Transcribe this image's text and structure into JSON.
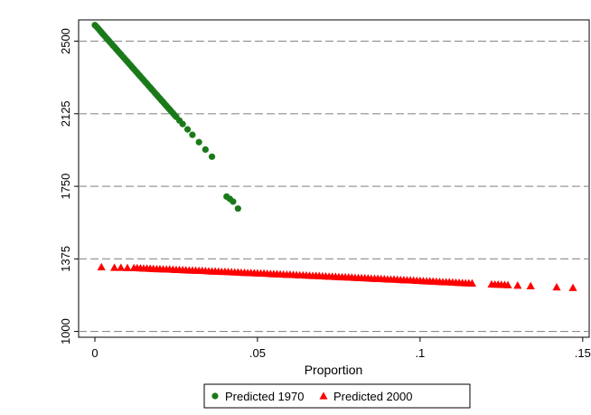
{
  "chart_data": {
    "type": "scatter",
    "title": "",
    "xlabel": "Proportion",
    "ylabel": "",
    "xlim": [
      -0.005,
      0.152
    ],
    "ylim": [
      970,
      2610
    ],
    "x_ticks": [
      {
        "value": 0,
        "label": "0"
      },
      {
        "value": 0.05,
        "label": ".05"
      },
      {
        "value": 0.1,
        "label": ".1"
      },
      {
        "value": 0.15,
        "label": ".15"
      }
    ],
    "y_ticks": [
      {
        "value": 1000,
        "label": "1000"
      },
      {
        "value": 1375,
        "label": "1375"
      },
      {
        "value": 1750,
        "label": "1750"
      },
      {
        "value": 2125,
        "label": "2125"
      },
      {
        "value": 2500,
        "label": "2500"
      }
    ],
    "grid": "horizontal dashed",
    "legend_position": "bottom",
    "series": [
      {
        "name": "Predicted 1970",
        "marker": "circle",
        "color": "#1a7a1a",
        "points": [
          [
            0.0,
            2583
          ],
          [
            0.0005,
            2575
          ],
          [
            0.001,
            2566
          ],
          [
            0.0015,
            2556
          ],
          [
            0.002,
            2546
          ],
          [
            0.0025,
            2536
          ],
          [
            0.003,
            2527
          ],
          [
            0.0035,
            2517
          ],
          [
            0.004,
            2508
          ],
          [
            0.0045,
            2498
          ],
          [
            0.005,
            2489
          ],
          [
            0.0055,
            2479
          ],
          [
            0.006,
            2470
          ],
          [
            0.0065,
            2460
          ],
          [
            0.007,
            2451
          ],
          [
            0.0075,
            2441
          ],
          [
            0.008,
            2432
          ],
          [
            0.0085,
            2422
          ],
          [
            0.009,
            2413
          ],
          [
            0.0095,
            2403
          ],
          [
            0.01,
            2394
          ],
          [
            0.0105,
            2384
          ],
          [
            0.011,
            2375
          ],
          [
            0.0115,
            2365
          ],
          [
            0.012,
            2356
          ],
          [
            0.0125,
            2346
          ],
          [
            0.013,
            2337
          ],
          [
            0.0135,
            2327
          ],
          [
            0.014,
            2318
          ],
          [
            0.0145,
            2308
          ],
          [
            0.015,
            2299
          ],
          [
            0.0155,
            2289
          ],
          [
            0.016,
            2280
          ],
          [
            0.0165,
            2270
          ],
          [
            0.017,
            2261
          ],
          [
            0.0175,
            2251
          ],
          [
            0.018,
            2242
          ],
          [
            0.0185,
            2232
          ],
          [
            0.019,
            2223
          ],
          [
            0.0195,
            2213
          ],
          [
            0.02,
            2204
          ],
          [
            0.0205,
            2194
          ],
          [
            0.021,
            2185
          ],
          [
            0.0215,
            2175
          ],
          [
            0.022,
            2166
          ],
          [
            0.0225,
            2156
          ],
          [
            0.023,
            2147
          ],
          [
            0.0235,
            2137
          ],
          [
            0.024,
            2128
          ],
          [
            0.0245,
            2118
          ],
          [
            0.025,
            2109
          ],
          [
            0.026,
            2090
          ],
          [
            0.027,
            2072
          ],
          [
            0.0285,
            2044
          ],
          [
            0.03,
            2016
          ],
          [
            0.032,
            1978
          ],
          [
            0.034,
            1940
          ],
          [
            0.036,
            1903
          ],
          [
            0.0405,
            1697
          ],
          [
            0.0415,
            1685
          ],
          [
            0.0425,
            1671
          ],
          [
            0.044,
            1635
          ]
        ]
      },
      {
        "name": "Predicted 2000",
        "marker": "triangle",
        "color": "#ff0000",
        "points": [
          [
            0.002,
            1333
          ],
          [
            0.006,
            1330
          ],
          [
            0.008,
            1330
          ],
          [
            0.01,
            1329
          ],
          [
            0.012,
            1328
          ],
          [
            0.013,
            1328
          ],
          [
            0.014,
            1327
          ],
          [
            0.015,
            1326
          ],
          [
            0.016,
            1326
          ],
          [
            0.017,
            1325
          ],
          [
            0.018,
            1324
          ],
          [
            0.019,
            1323
          ],
          [
            0.02,
            1323
          ],
          [
            0.021,
            1322
          ],
          [
            0.022,
            1321
          ],
          [
            0.023,
            1321
          ],
          [
            0.024,
            1320
          ],
          [
            0.025,
            1319
          ],
          [
            0.026,
            1319
          ],
          [
            0.027,
            1318
          ],
          [
            0.028,
            1317
          ],
          [
            0.029,
            1316
          ],
          [
            0.03,
            1316
          ],
          [
            0.031,
            1315
          ],
          [
            0.032,
            1314
          ],
          [
            0.033,
            1314
          ],
          [
            0.034,
            1313
          ],
          [
            0.035,
            1312
          ],
          [
            0.036,
            1311
          ],
          [
            0.037,
            1311
          ],
          [
            0.038,
            1310
          ],
          [
            0.039,
            1309
          ],
          [
            0.04,
            1309
          ],
          [
            0.041,
            1308
          ],
          [
            0.042,
            1307
          ],
          [
            0.043,
            1306
          ],
          [
            0.044,
            1306
          ],
          [
            0.045,
            1305
          ],
          [
            0.046,
            1304
          ],
          [
            0.047,
            1303
          ],
          [
            0.048,
            1303
          ],
          [
            0.049,
            1302
          ],
          [
            0.05,
            1301
          ],
          [
            0.051,
            1300
          ],
          [
            0.052,
            1300
          ],
          [
            0.053,
            1299
          ],
          [
            0.054,
            1298
          ],
          [
            0.055,
            1297
          ],
          [
            0.056,
            1297
          ],
          [
            0.057,
            1296
          ],
          [
            0.058,
            1295
          ],
          [
            0.059,
            1294
          ],
          [
            0.06,
            1294
          ],
          [
            0.061,
            1293
          ],
          [
            0.062,
            1292
          ],
          [
            0.063,
            1291
          ],
          [
            0.064,
            1291
          ],
          [
            0.065,
            1290
          ],
          [
            0.066,
            1289
          ],
          [
            0.067,
            1288
          ],
          [
            0.068,
            1288
          ],
          [
            0.069,
            1287
          ],
          [
            0.07,
            1286
          ],
          [
            0.071,
            1285
          ],
          [
            0.072,
            1284
          ],
          [
            0.073,
            1284
          ],
          [
            0.074,
            1283
          ],
          [
            0.075,
            1282
          ],
          [
            0.076,
            1281
          ],
          [
            0.077,
            1281
          ],
          [
            0.078,
            1280
          ],
          [
            0.079,
            1279
          ],
          [
            0.08,
            1278
          ],
          [
            0.081,
            1277
          ],
          [
            0.082,
            1277
          ],
          [
            0.083,
            1276
          ],
          [
            0.084,
            1275
          ],
          [
            0.085,
            1274
          ],
          [
            0.086,
            1273
          ],
          [
            0.087,
            1273
          ],
          [
            0.088,
            1272
          ],
          [
            0.089,
            1271
          ],
          [
            0.09,
            1270
          ],
          [
            0.091,
            1269
          ],
          [
            0.092,
            1269
          ],
          [
            0.093,
            1268
          ],
          [
            0.094,
            1267
          ],
          [
            0.095,
            1266
          ],
          [
            0.096,
            1265
          ],
          [
            0.097,
            1265
          ],
          [
            0.098,
            1264
          ],
          [
            0.099,
            1263
          ],
          [
            0.1,
            1262
          ],
          [
            0.101,
            1261
          ],
          [
            0.102,
            1260
          ],
          [
            0.103,
            1260
          ],
          [
            0.104,
            1259
          ],
          [
            0.105,
            1258
          ],
          [
            0.106,
            1257
          ],
          [
            0.107,
            1256
          ],
          [
            0.108,
            1255
          ],
          [
            0.109,
            1255
          ],
          [
            0.11,
            1254
          ],
          [
            0.111,
            1253
          ],
          [
            0.112,
            1252
          ],
          [
            0.113,
            1251
          ],
          [
            0.114,
            1250
          ],
          [
            0.115,
            1250
          ],
          [
            0.116,
            1249
          ],
          [
            0.122,
            1244
          ],
          [
            0.123,
            1243
          ],
          [
            0.124,
            1243
          ],
          [
            0.125,
            1242
          ],
          [
            0.126,
            1241
          ],
          [
            0.127,
            1240
          ],
          [
            0.13,
            1238
          ],
          [
            0.134,
            1235
          ],
          [
            0.142,
            1229
          ],
          [
            0.147,
            1226
          ]
        ]
      }
    ]
  }
}
